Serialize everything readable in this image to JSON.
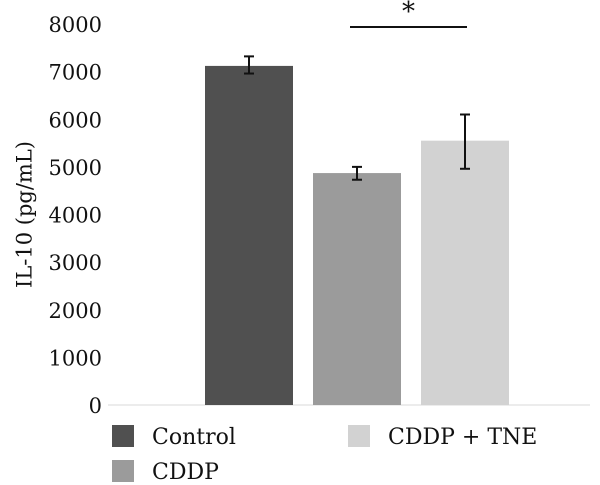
{
  "chart_data": {
    "type": "bar",
    "title": "",
    "xlabel": "",
    "ylabel": "IL-10 (pg/mL)",
    "ylim": [
      0,
      8000
    ],
    "yticks": [
      0,
      1000,
      2000,
      3000,
      4000,
      5000,
      6000,
      7000,
      8000
    ],
    "grid": false,
    "legend_position": "bottom",
    "categories": [
      "Control",
      "CDDP",
      "CDDP + TNE"
    ],
    "values": [
      7120,
      4870,
      5550
    ],
    "error_low": [
      6960,
      4730,
      4960
    ],
    "error_high": [
      7320,
      5000,
      6100
    ],
    "colors": [
      "#505050",
      "#9b9b9b",
      "#d2d2d2"
    ],
    "significance": {
      "label": "*",
      "from_category": "CDDP",
      "to_category": "CDDP + TNE"
    },
    "legend": [
      {
        "label": "Control",
        "color": "#505050"
      },
      {
        "label": "CDDP + TNE",
        "color": "#d2d2d2"
      },
      {
        "label": "CDDP",
        "color": "#9b9b9b"
      }
    ]
  }
}
